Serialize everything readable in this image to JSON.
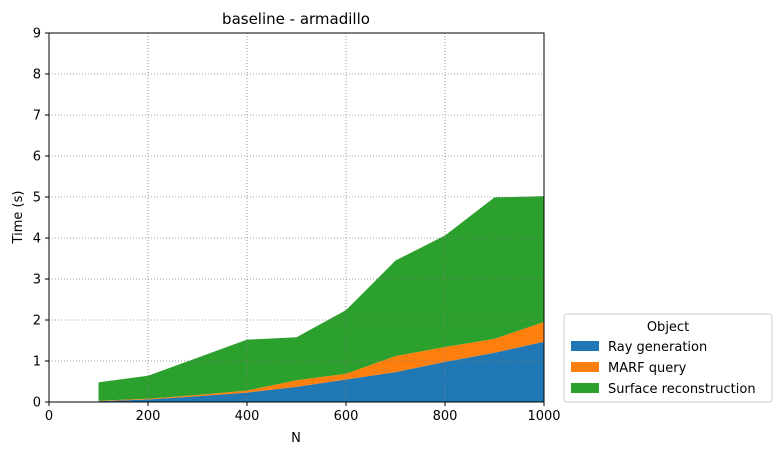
{
  "chart_data": {
    "type": "area",
    "stacked": true,
    "title": "baseline - armadillo",
    "xlabel": "N",
    "ylabel": "Time (s)",
    "xlim": [
      0,
      1000
    ],
    "ylim": [
      0,
      9
    ],
    "xticks": [
      0,
      200,
      400,
      600,
      800,
      1000
    ],
    "yticks": [
      0,
      1,
      2,
      3,
      4,
      5,
      6,
      7,
      8,
      9
    ],
    "grid": true,
    "legend": {
      "title": "Object",
      "placement": "outside-lower-right"
    },
    "x": [
      100,
      200,
      300,
      400,
      500,
      600,
      700,
      800,
      900,
      1000
    ],
    "series": [
      {
        "name": "Ray generation",
        "color": "#1f77b4",
        "values": [
          0.02,
          0.06,
          0.14,
          0.23,
          0.37,
          0.55,
          0.73,
          0.98,
          1.2,
          1.47
        ]
      },
      {
        "name": "MARF query",
        "color": "#ff7f0e",
        "values": [
          0.01,
          0.02,
          0.03,
          0.05,
          0.16,
          0.14,
          0.39,
          0.36,
          0.34,
          0.48
        ]
      },
      {
        "name": "Surface reconstruction",
        "color": "#2ca02c",
        "values": [
          0.45,
          0.56,
          0.91,
          1.24,
          1.05,
          1.55,
          2.33,
          2.72,
          3.45,
          3.07
        ]
      }
    ]
  }
}
